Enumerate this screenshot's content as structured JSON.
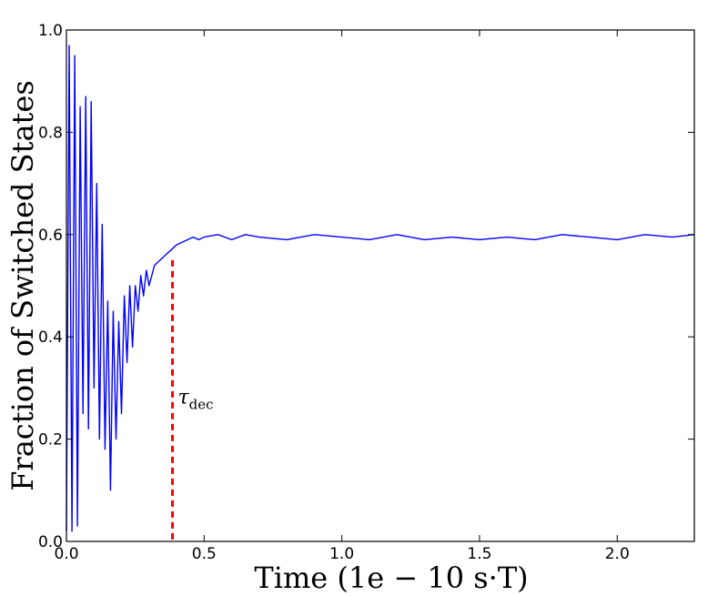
{
  "chart_data": {
    "type": "line",
    "title": "",
    "xlabel": "Time (1e − 10 s·T)",
    "ylabel": "Fraction of Switched States",
    "xlim": [
      0.0,
      2.28
    ],
    "ylim": [
      0.0,
      1.0
    ],
    "xticks": [
      "0.0",
      "0.5",
      "1.0",
      "1.5",
      "2.0"
    ],
    "yticks": [
      "0.0",
      "0.2",
      "0.4",
      "0.6",
      "0.8",
      "1.0"
    ],
    "grid": false,
    "legend": "none",
    "line_color": "#0000ff",
    "annotation": {
      "label": "τ",
      "label_sub": "dec",
      "x": 0.385,
      "y": 0.55,
      "color": "#ff0000"
    },
    "series": [
      {
        "x": [
          0.0,
          0.01,
          0.02,
          0.03,
          0.04,
          0.05,
          0.06,
          0.07,
          0.08,
          0.09,
          0.1,
          0.11,
          0.12,
          0.13,
          0.14,
          0.15,
          0.16,
          0.17,
          0.18,
          0.19,
          0.2,
          0.21,
          0.22,
          0.23,
          0.24,
          0.25,
          0.26,
          0.27,
          0.28,
          0.29,
          0.3,
          0.32,
          0.34,
          0.36,
          0.38,
          0.4,
          0.42,
          0.44,
          0.46,
          0.48,
          0.5,
          0.55,
          0.6,
          0.65,
          0.7,
          0.8,
          0.9,
          1.0,
          1.1,
          1.2,
          1.3,
          1.4,
          1.5,
          1.6,
          1.7,
          1.8,
          1.9,
          2.0,
          2.1,
          2.2,
          2.28
        ],
        "y": [
          0.02,
          0.97,
          0.02,
          0.95,
          0.03,
          0.85,
          0.25,
          0.87,
          0.22,
          0.86,
          0.3,
          0.7,
          0.2,
          0.62,
          0.18,
          0.47,
          0.1,
          0.45,
          0.2,
          0.43,
          0.25,
          0.48,
          0.35,
          0.5,
          0.38,
          0.5,
          0.45,
          0.52,
          0.48,
          0.53,
          0.5,
          0.54,
          0.55,
          0.56,
          0.57,
          0.58,
          0.585,
          0.59,
          0.595,
          0.59,
          0.595,
          0.6,
          0.59,
          0.6,
          0.595,
          0.59,
          0.6,
          0.595,
          0.59,
          0.6,
          0.59,
          0.595,
          0.59,
          0.595,
          0.59,
          0.6,
          0.595,
          0.59,
          0.6,
          0.595,
          0.6
        ]
      }
    ]
  }
}
